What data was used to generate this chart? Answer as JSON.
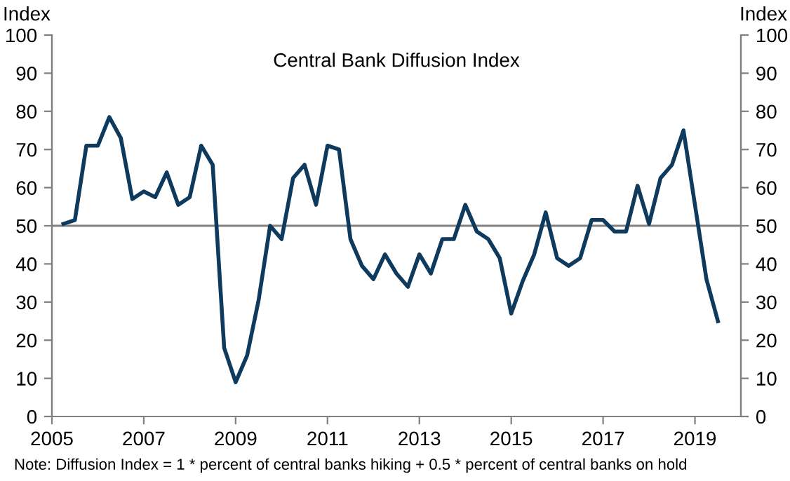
{
  "chart_data": {
    "type": "line",
    "title": "Central Bank Diffusion Index",
    "ylabel": "Index",
    "y2label": "Index",
    "x": [
      2005.25,
      2005.5,
      2005.75,
      2006.0,
      2006.25,
      2006.5,
      2006.75,
      2007.0,
      2007.25,
      2007.5,
      2007.75,
      2008.0,
      2008.25,
      2008.5,
      2008.75,
      2009.0,
      2009.25,
      2009.5,
      2009.75,
      2010.0,
      2010.25,
      2010.5,
      2010.75,
      2011.0,
      2011.25,
      2011.5,
      2011.75,
      2012.0,
      2012.25,
      2012.5,
      2012.75,
      2013.0,
      2013.25,
      2013.5,
      2013.75,
      2014.0,
      2014.25,
      2014.5,
      2014.75,
      2015.0,
      2015.25,
      2015.5,
      2015.75,
      2016.0,
      2016.25,
      2016.5,
      2016.75,
      2017.0,
      2017.25,
      2017.5,
      2017.75,
      2018.0,
      2018.25,
      2018.5,
      2018.75,
      2019.0,
      2019.25,
      2019.5
    ],
    "series": [
      {
        "color": "#0e3a5e",
        "values": [
          50.5,
          51.5,
          71,
          71,
          78.5,
          73,
          57,
          59,
          57.5,
          64,
          55.5,
          57.5,
          71,
          66,
          18,
          9,
          16,
          30.5,
          50,
          46.5,
          62.5,
          66,
          55.5,
          71,
          70,
          46.5,
          39.5,
          36,
          42.5,
          37.5,
          34,
          42.5,
          37.5,
          46.5,
          46.5,
          55.5,
          48.5,
          46.5,
          41.5,
          27,
          35.5,
          42.5,
          53.5,
          41.5,
          39.5,
          41.5,
          51.5,
          51.5,
          48.5,
          48.5,
          60.5,
          50.5,
          62.5,
          66,
          75,
          55.5,
          36,
          25
        ]
      }
    ],
    "xlim": [
      2005,
      2020
    ],
    "xticks": [
      2005,
      2007,
      2009,
      2011,
      2013,
      2015,
      2017,
      2019
    ],
    "ylim": [
      0,
      100
    ],
    "yticks": [
      0,
      10,
      20,
      30,
      40,
      50,
      60,
      70,
      80,
      90,
      100
    ],
    "y2lim": [
      0,
      100
    ],
    "y2ticks": [
      0,
      10,
      20,
      30,
      40,
      50,
      60,
      70,
      80,
      90,
      100
    ],
    "ref_lines": [
      {
        "axis": "y",
        "value": 50,
        "color": "#808080"
      }
    ],
    "annotations": [
      "Note: Diffusion Index = 1 * percent of central banks hiking + 0.5 * percent of central banks on hold"
    ],
    "grid": false,
    "marker": "none",
    "line_style": "solid"
  }
}
